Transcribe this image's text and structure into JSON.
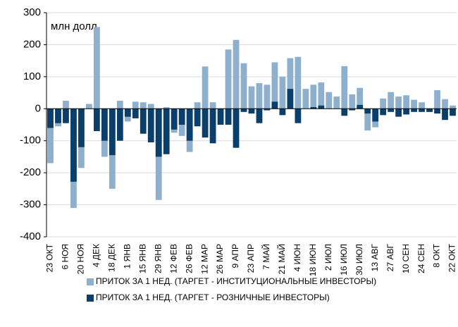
{
  "chart_data": {
    "type": "bar",
    "annotation": "млн долл.",
    "categories": [
      "23 ОКТ",
      null,
      "6 НОЯ",
      null,
      "20 НОЯ",
      null,
      "4 ДЕК",
      null,
      "18 ДЕК",
      null,
      "1 ЯНВ",
      null,
      "15 ЯНВ",
      null,
      "29 ЯНВ",
      null,
      "12 ФЕВ",
      null,
      "26 ФЕВ",
      null,
      "12 МАР",
      null,
      "26 МАР",
      null,
      "9 АПР",
      null,
      "23 АПР",
      null,
      "7 МАЙ",
      null,
      "21 МАЙ",
      null,
      "4 ИЮН",
      null,
      "18 ИЮН",
      null,
      "2 ИЮЛ",
      null,
      "16 ИЮЛ",
      null,
      "30 ИЮЛ",
      null,
      "13 АВГ",
      null,
      "27 АВГ",
      null,
      "10 СЕН",
      null,
      "24 СЕН",
      null,
      "8 ОКТ",
      null,
      "22 ОКТ"
    ],
    "series": [
      {
        "name": "ПРИТОК ЗА 1 НЕД. (ТАРГЕТ - ИНСТИТУЦИОНАЛЬНЫЕ  ИНВЕСТОРЫ)",
        "color": "#8eb0cc",
        "values": [
          -170,
          -55,
          25,
          -310,
          -185,
          15,
          255,
          -150,
          -250,
          25,
          -40,
          22,
          20,
          15,
          -285,
          5,
          -75,
          -85,
          -135,
          20,
          132,
          20,
          -50,
          185,
          215,
          142,
          70,
          80,
          75,
          145,
          100,
          158,
          162,
          62,
          75,
          82,
          52,
          38,
          133,
          45,
          65,
          -68,
          -58,
          32,
          52,
          38,
          42,
          28,
          20,
          -10,
          58,
          30,
          10
        ]
      },
      {
        "name": "ПРИТОК ЗА 1 НЕД. (ТАРГЕТ - РОЗНИЧНЫЕ ИНВЕСТОРЫ)",
        "color": "#0b3f6b",
        "values": [
          -60,
          -45,
          -45,
          -228,
          -120,
          0,
          -70,
          -100,
          -145,
          -100,
          -25,
          -30,
          -78,
          -105,
          -150,
          -142,
          -65,
          -50,
          -100,
          -55,
          -90,
          -108,
          -50,
          -50,
          -122,
          -10,
          -15,
          -45,
          -5,
          22,
          -20,
          62,
          -45,
          0,
          5,
          10,
          0,
          0,
          -22,
          -5,
          12,
          -15,
          -40,
          -20,
          -10,
          -25,
          -18,
          -10,
          -10,
          -10,
          -15,
          -35,
          -22
        ]
      }
    ],
    "ylim": [
      -400,
      300
    ],
    "yticks": [
      -400,
      -300,
      -200,
      -100,
      0,
      100,
      200,
      300
    ],
    "grid": true
  }
}
